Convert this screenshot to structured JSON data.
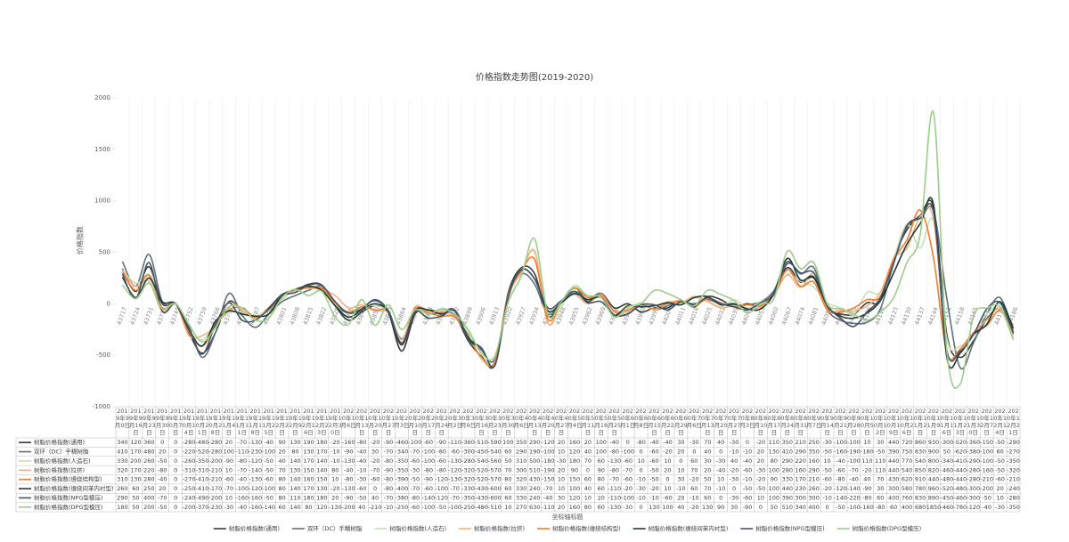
{
  "chart_data": {
    "type": "line",
    "title": "价格指数走势图(2019-2020)",
    "y_label": "价格指数",
    "x_label": "坐标轴标题",
    "ylim": [
      -1000,
      2000
    ],
    "yticks": [
      -1000,
      -500,
      0,
      500,
      1000,
      1500,
      2000
    ],
    "x_grid": true,
    "smooth": true,
    "legend": "bottom",
    "data_table": true,
    "axis_labels": [
      43717,
      43724,
      43731,
      43738,
      43745,
      43752,
      43759,
      43766,
      43773,
      43780,
      43787,
      43794,
      43801,
      43808,
      43815,
      43822,
      43829,
      43836,
      43843,
      43850,
      43857,
      43864,
      43871,
      43878,
      43885,
      43892,
      43899,
      43906,
      43913,
      43920,
      43927,
      43934,
      43941,
      43948,
      43955,
      43962,
      43969,
      43976,
      43983,
      43990,
      43997,
      44004,
      44011,
      44018,
      44025,
      44032,
      44039,
      44046,
      44053,
      44060,
      44067,
      44074,
      44081,
      44088,
      44095,
      44102,
      44109,
      44116,
      44123,
      44130,
      44137,
      44144,
      44151,
      44158,
      44165,
      44172,
      44179,
      44186
    ],
    "categories": [
      "2019年9月9日",
      "2019年9月16日",
      "2019年9月23日",
      "2019年9月30日",
      "2019年10月7日",
      "2019年10月14日",
      "2019年10月21日",
      "2019年10月28日",
      "2019年11月4日",
      "2019年11月11日",
      "2019年11月18日",
      "2019年11月25日",
      "2019年12月2日",
      "2019年12月9日",
      "2019年12月16日",
      "2019年12月23日",
      "2019年12月30日",
      "2020年1月6日",
      "2020年1月13日",
      "2020年1月20日",
      "2020年1月27日",
      "2020年2月3日",
      "2020年2月10日",
      "2020年2月17日",
      "2020年2月24日",
      "2020年3月2日",
      "2020年3月9日",
      "2020年3月16日",
      "2020年3月23日",
      "2020年3月30日",
      "2020年4月6日",
      "2020年4月13日",
      "2020年4月20日",
      "2020年4月27日",
      "2020年5月4日",
      "2020年5月11日",
      "2020年5月18日",
      "2020年5月25日",
      "2020年6月1日",
      "2020年6月8日",
      "2020年6月15日",
      "2020年6月22日",
      "2020年6月29日",
      "2020年7月6日",
      "2020年7月13日",
      "2020年7月20日",
      "2020年7月27日",
      "2020年8月3日",
      "2020年8月10日",
      "2020年8月17日",
      "2020年8月24日",
      "2020年8月31日",
      "2020年9月7日",
      "2020年9月14日",
      "2020年9月21日",
      "2020年9月28日",
      "2020年10月5日",
      "2020年10月12日",
      "2020年10月19日",
      "2020年10月26日",
      "2020年11月2日",
      "2020年11月9日",
      "2020年11月16日",
      "2020年11月23日",
      "2020年11月30日",
      "2020年12月7日",
      "2020年12月14日",
      "2020年12月21日"
    ],
    "series": [
      {
        "name": "树脂价格指数(通用)",
        "color": "#3a3a3a",
        "values": [
          340,
          120,
          360,
          0,
          0,
          -280,
          -480,
          -280,
          20,
          -70,
          -130,
          -40,
          90,
          130,
          190,
          180,
          -20,
          -160,
          -80,
          -20,
          -90,
          -460,
          -100,
          -60,
          -90,
          -110,
          -360,
          -510,
          -590,
          100,
          350,
          290,
          -120,
          20,
          160,
          20,
          100,
          -40,
          0,
          -80,
          -40,
          -40,
          30,
          -30,
          70,
          40,
          -30,
          0,
          -20,
          110,
          350,
          210,
          250,
          -30,
          -100,
          -100,
          10,
          30,
          440,
          720,
          860,
          930,
          -300,
          -520,
          -360,
          -150,
          -50,
          -290
        ]
      },
      {
        "name": "双环（DC）手糊树脂",
        "color": "#5f6f7c",
        "values": [
          410,
          170,
          480,
          20,
          0,
          -220,
          -520,
          -280,
          100,
          -110,
          -230,
          -100,
          20,
          80,
          130,
          170,
          -10,
          -90,
          -40,
          30,
          -70,
          -340,
          -70,
          -100,
          -80,
          -60,
          -300,
          -450,
          -540,
          60,
          290,
          190,
          -100,
          10,
          120,
          40,
          100,
          -80,
          -100,
          0,
          -60,
          -20,
          20,
          0,
          40,
          0,
          -10,
          -10,
          20,
          130,
          410,
          290,
          350,
          -50,
          -160,
          -190,
          -180,
          -50,
          390,
          750,
          830,
          900,
          50,
          -620,
          -380,
          -100,
          60,
          -270
        ]
      },
      {
        "name": "树脂价格指数(人造石)",
        "color": "#c5e0b4",
        "values": [
          330,
          200,
          260,
          -50,
          0,
          -260,
          -350,
          -200,
          -90,
          -80,
          -120,
          -50,
          40,
          140,
          170,
          140,
          -10,
          -130,
          -40,
          -20,
          -80,
          -350,
          -60,
          -100,
          -60,
          -130,
          -280,
          -540,
          -560,
          50,
          310,
          500,
          -180,
          -30,
          180,
          70,
          60,
          -130,
          -60,
          10,
          -60,
          10,
          0,
          60,
          30,
          -30,
          40,
          -40,
          20,
          80,
          290,
          220,
          160,
          10,
          -40,
          -100,
          110,
          110,
          440,
          770,
          540,
          800,
          -340,
          -410,
          -290,
          -100,
          -50,
          -350
        ]
      },
      {
        "name": "树脂价格指数(拉挤)",
        "color": "#f4b183",
        "values": [
          320,
          170,
          220,
          -80,
          0,
          -310,
          -310,
          -210,
          10,
          -70,
          -140,
          -50,
          70,
          130,
          150,
          140,
          80,
          -40,
          -10,
          -70,
          -90,
          -350,
          -30,
          -80,
          -80,
          -120,
          -320,
          -520,
          -570,
          70,
          300,
          510,
          -190,
          20,
          90,
          0,
          90,
          -80,
          -70,
          0,
          -50,
          20,
          10,
          70,
          20,
          -40,
          -20,
          -60,
          -30,
          100,
          280,
          160,
          290,
          -50,
          -60,
          -70,
          -20,
          110,
          440,
          540,
          850,
          820,
          -460,
          -440,
          -280,
          -160,
          -50,
          -320
        ]
      },
      {
        "name": "树脂价格指数(缠绕结构型)",
        "color": "#ed7d31",
        "values": [
          310,
          130,
          280,
          -40,
          0,
          -270,
          -410,
          -210,
          -60,
          -40,
          -130,
          -60,
          80,
          140,
          160,
          150,
          10,
          -80,
          -30,
          -60,
          -80,
          -390,
          -50,
          -90,
          -120,
          -130,
          -320,
          -520,
          -570,
          80,
          320,
          430,
          -150,
          10,
          150,
          60,
          80,
          -70,
          -60,
          -10,
          -50,
          0,
          30,
          -20,
          50,
          10,
          -30,
          -10,
          -20,
          90,
          330,
          170,
          210,
          -60,
          -80,
          -40,
          40,
          70,
          430,
          620,
          910,
          440,
          -480,
          -440,
          -280,
          -210,
          -60,
          -210
        ]
      },
      {
        "name": "树脂价格指数(缠绕间苯内衬型)",
        "color": "#1f3b30",
        "values": [
          260,
          60,
          250,
          20,
          0,
          -250,
          -410,
          -170,
          -70,
          -100,
          -120,
          -100,
          80,
          140,
          170,
          130,
          -20,
          -130,
          -60,
          0,
          -80,
          -400,
          -70,
          -60,
          -100,
          -70,
          -330,
          -430,
          -600,
          60,
          330,
          240,
          -70,
          10,
          100,
          40,
          60,
          -110,
          -20,
          -30,
          -20,
          10,
          -10,
          60,
          70,
          -10,
          0,
          -50,
          -50,
          100,
          440,
          230,
          260,
          -20,
          -120,
          -140,
          -90,
          30,
          300,
          580,
          780,
          960,
          -520,
          -480,
          -300,
          -200,
          20,
          -240
        ]
      },
      {
        "name": "树脂价格指数(NPG型模压)",
        "color": "#44546a",
        "values": [
          290,
          50,
          400,
          -70,
          0,
          -240,
          -490,
          -200,
          10,
          -160,
          -160,
          -50,
          80,
          110,
          180,
          180,
          20,
          -90,
          -50,
          40,
          -70,
          -380,
          -80,
          -140,
          -120,
          -70,
          -350,
          -430,
          -600,
          60,
          330,
          240,
          -40,
          30,
          120,
          10,
          20,
          -110,
          -100,
          -10,
          -10,
          -60,
          20,
          -10,
          60,
          0,
          -30,
          -60,
          10,
          100,
          390,
          300,
          300,
          -10,
          -140,
          -220,
          -80,
          60,
          400,
          760,
          830,
          890,
          -450,
          -460,
          -300,
          -50,
          10,
          -280
        ]
      },
      {
        "name": "树脂价格指数(DPG型模压)",
        "color": "#9fcc8a",
        "values": [
          180,
          50,
          200,
          -50,
          0,
          -200,
          -370,
          -230,
          -30,
          -40,
          -160,
          -140,
          60,
          140,
          80,
          120,
          -130,
          -200,
          40,
          -210,
          -10,
          -250,
          -60,
          -100,
          -50,
          -100,
          -250,
          -480,
          -510,
          10,
          270,
          630,
          -110,
          20,
          160,
          80,
          60,
          -130,
          -30,
          0,
          130,
          100,
          40,
          -20,
          130,
          90,
          30,
          -90,
          0,
          50,
          510,
          340,
          400,
          0,
          -50,
          -100,
          -160,
          -80,
          60,
          400,
          680,
          1850,
          -460,
          -780,
          -120,
          -40,
          -30,
          -350
        ]
      }
    ]
  }
}
